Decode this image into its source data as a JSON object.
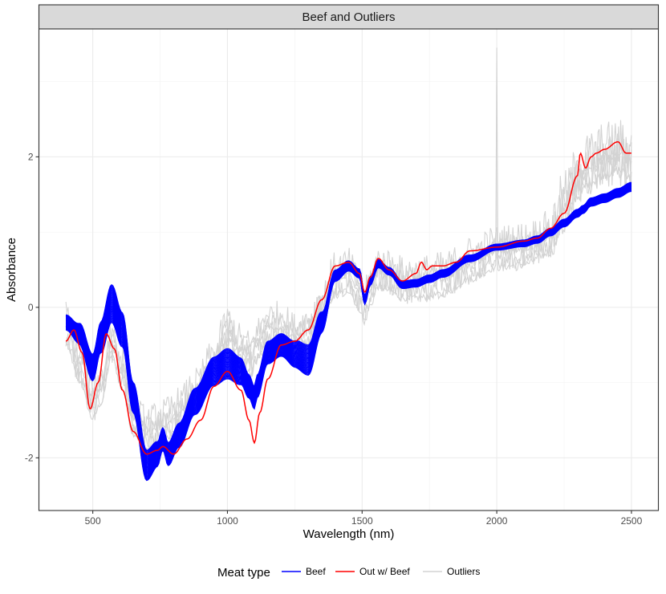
{
  "chart_data": {
    "type": "line",
    "facet_title": "Beef and Outliers",
    "xlabel": "Wavelength (nm)",
    "ylabel": "Absorbance",
    "xlim": [
      300,
      2600
    ],
    "ylim": [
      -2.7,
      3.7
    ],
    "x_ticks": [
      500,
      1000,
      1500,
      2000,
      2500
    ],
    "y_ticks": [
      -2,
      0,
      2
    ],
    "x_tick_labels": [
      "500",
      "1000",
      "1500",
      "2000",
      "2500"
    ],
    "y_tick_labels": [
      "-2",
      "0",
      "2"
    ],
    "grid": true,
    "legend": {
      "title": "Meat type",
      "position": "bottom",
      "entries": [
        {
          "label": "Beef",
          "color": "#0000ff"
        },
        {
          "label": "Out w/ Beef",
          "color": "#ff0000"
        },
        {
          "label": "Outliers",
          "color": "#d3d3d3"
        }
      ]
    },
    "series": [
      {
        "name": "Beef",
        "color": "#0000ff",
        "curve_count": 32,
        "spread": [
          0.12,
          0.28
        ],
        "x": [
          400,
          450,
          500,
          530,
          570,
          610,
          650,
          700,
          740,
          760,
          780,
          820,
          880,
          950,
          1000,
          1050,
          1080,
          1100,
          1110,
          1150,
          1200,
          1250,
          1300,
          1350,
          1400,
          1450,
          1490,
          1510,
          1530,
          1560,
          1600,
          1650,
          1700,
          1750,
          1800,
          1900,
          2000,
          2100,
          2150,
          2200,
          2250,
          2300,
          2320,
          2350,
          2400,
          2450,
          2500
        ],
        "y": [
          -0.2,
          -0.35,
          -0.8,
          -0.4,
          0.05,
          -0.3,
          -1.2,
          -2.1,
          -1.95,
          -1.75,
          -1.95,
          -1.7,
          -1.25,
          -0.85,
          -0.75,
          -0.85,
          -1.05,
          -1.2,
          -1.05,
          -0.6,
          -0.5,
          -0.62,
          -0.7,
          -0.2,
          0.42,
          0.55,
          0.45,
          0.1,
          0.35,
          0.58,
          0.48,
          0.3,
          0.32,
          0.38,
          0.45,
          0.65,
          0.8,
          0.85,
          0.9,
          1.0,
          1.12,
          1.25,
          1.3,
          1.4,
          1.45,
          1.52,
          1.6
        ],
        "spread_x": [
          400,
          500,
          570,
          650,
          700,
          760,
          900,
          1000,
          1100,
          1200,
          1300,
          1400,
          1500,
          1600,
          1800,
          2000,
          2200,
          2500
        ],
        "spread_y": [
          0.2,
          0.35,
          0.5,
          0.4,
          0.4,
          0.3,
          0.35,
          0.4,
          0.3,
          0.3,
          0.4,
          0.15,
          0.12,
          0.1,
          0.1,
          0.08,
          0.1,
          0.12
        ]
      },
      {
        "name": "Out w/ Beef",
        "color": "#ff0000",
        "x": [
          400,
          430,
          460,
          490,
          520,
          550,
          580,
          610,
          650,
          700,
          740,
          760,
          800,
          850,
          900,
          950,
          1000,
          1050,
          1080,
          1100,
          1120,
          1150,
          1200,
          1250,
          1300,
          1350,
          1400,
          1450,
          1490,
          1510,
          1530,
          1560,
          1600,
          1650,
          1700,
          1720,
          1740,
          1760,
          1800,
          1850,
          1900,
          2000,
          2100,
          2150,
          2200,
          2250,
          2300,
          2310,
          2330,
          2350,
          2370,
          2400,
          2450,
          2480,
          2500
        ],
        "y": [
          -0.45,
          -0.3,
          -0.6,
          -1.35,
          -1.0,
          -0.35,
          -0.55,
          -1.1,
          -1.65,
          -1.95,
          -1.9,
          -1.85,
          -1.95,
          -1.75,
          -1.5,
          -1.05,
          -0.85,
          -1.1,
          -1.5,
          -1.8,
          -1.4,
          -0.95,
          -0.5,
          -0.45,
          -0.3,
          0.1,
          0.55,
          0.6,
          0.45,
          0.2,
          0.4,
          0.65,
          0.5,
          0.35,
          0.45,
          0.6,
          0.5,
          0.55,
          0.55,
          0.6,
          0.75,
          0.8,
          0.88,
          0.92,
          1.05,
          1.25,
          1.75,
          2.05,
          1.85,
          2.0,
          2.05,
          2.1,
          2.2,
          2.05,
          2.05
        ]
      },
      {
        "name": "Outliers",
        "color": "#d3d3d3",
        "curve_count": 6,
        "x": [
          400,
          450,
          500,
          530,
          570,
          610,
          650,
          700,
          760,
          820,
          880,
          950,
          1000,
          1050,
          1090,
          1100,
          1150,
          1200,
          1250,
          1300,
          1350,
          1400,
          1450,
          1490,
          1510,
          1530,
          1560,
          1600,
          1650,
          1700,
          1800,
          1900,
          2000,
          2100,
          2200,
          2250,
          2300,
          2350,
          2400,
          2450,
          2500
        ],
        "y": [
          -0.3,
          -0.8,
          -1.3,
          -1.1,
          -0.5,
          -0.9,
          -1.5,
          -1.7,
          -1.6,
          -1.45,
          -1.2,
          -0.8,
          -0.35,
          -0.6,
          -0.7,
          -0.55,
          -0.3,
          -0.3,
          -0.45,
          -0.35,
          -0.05,
          0.35,
          0.4,
          0.15,
          0.0,
          0.2,
          0.45,
          0.4,
          0.3,
          0.3,
          0.35,
          0.55,
          0.7,
          0.75,
          0.9,
          1.3,
          1.65,
          1.85,
          1.95,
          2.0,
          1.9
        ],
        "noise_amplitude": 0.22,
        "spike": {
          "x": 2000,
          "y": 3.45
        }
      }
    ]
  }
}
